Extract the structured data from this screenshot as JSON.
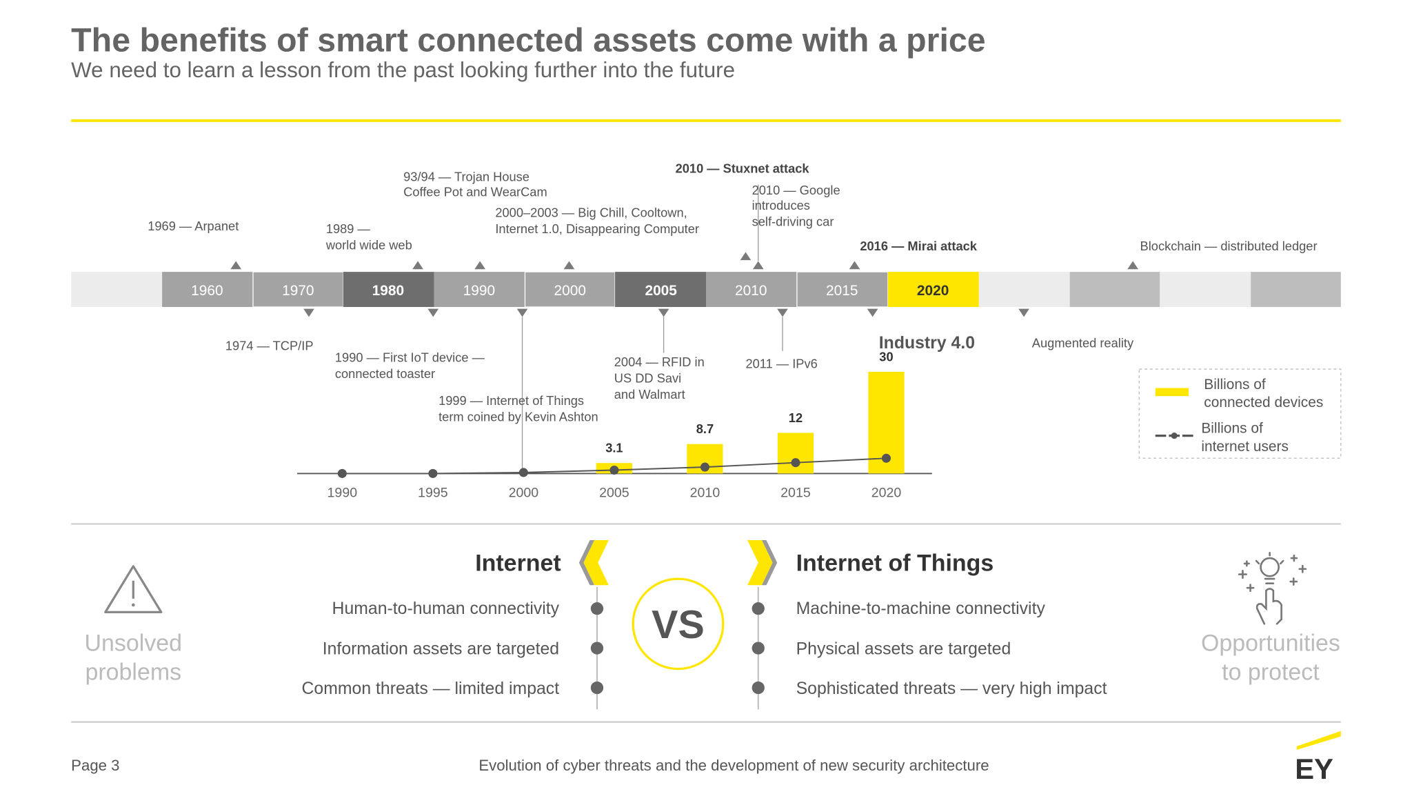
{
  "header": {
    "title": "The benefits of smart connected assets come with a price",
    "subtitle": "We need to learn a lesson from the past looking further into the future"
  },
  "timeline": {
    "decades": [
      "1960",
      "1970",
      "1980",
      "1990",
      "2000",
      "2005",
      "2010",
      "2015",
      "2020"
    ],
    "events_above": [
      {
        "lines": [
          "1969 — Arpanet"
        ]
      },
      {
        "lines": [
          "1989 —",
          "world wide web"
        ]
      },
      {
        "lines": [
          "93/94 — Trojan House",
          "Coffee Pot and WearCam"
        ]
      },
      {
        "lines": [
          "2000–2003 — Big Chill, Cooltown,",
          "Internet 1.0, Disappearing Computer"
        ]
      },
      {
        "lines": [
          "2010 — Stuxnet attack"
        ]
      },
      {
        "lines": [
          "2010 — Google",
          "introduces",
          "self-driving car"
        ]
      },
      {
        "lines": [
          "2016 — Mirai attack"
        ]
      },
      {
        "lines": [
          "Blockchain — distributed ledger"
        ]
      }
    ],
    "events_below": [
      {
        "lines": [
          "1974 — TCP/IP"
        ]
      },
      {
        "lines": [
          "1990 — First IoT device —",
          "connected toaster"
        ]
      },
      {
        "lines": [
          "1999 — Internet of Things",
          "term coined by Kevin Ashton"
        ]
      },
      {
        "lines": [
          "2004 — RFID in",
          "US DD Savi",
          "and Walmart"
        ]
      },
      {
        "lines": [
          "2011 — IPv6"
        ]
      },
      {
        "lines": [
          "Industry 4.0"
        ]
      },
      {
        "lines": [
          "Augmented reality"
        ]
      }
    ]
  },
  "chart_data": {
    "type": "bar",
    "categories": [
      "1990",
      "1995",
      "2000",
      "2005",
      "2010",
      "2015",
      "2020"
    ],
    "series": [
      {
        "name": [
          "Billions of",
          "connected devices"
        ],
        "type": "bar",
        "color": "#ffe600",
        "values": [
          null,
          null,
          null,
          3.1,
          8.7,
          12,
          30
        ]
      },
      {
        "name": [
          "Billions of",
          "internet users"
        ],
        "type": "line",
        "color": "#555555",
        "values": [
          0,
          0,
          0.3,
          1,
          1.9,
          3.2,
          4.5
        ]
      }
    ]
  },
  "comparison": {
    "left_label": {
      "lines": [
        "Unsolved",
        "problems"
      ]
    },
    "internet": {
      "title": "Internet",
      "items": [
        "Human-to-human connectivity",
        "Information assets are targeted",
        "Common threats — limited impact"
      ]
    },
    "vs": "VS",
    "iot": {
      "title": "Internet of Things",
      "items": [
        "Machine-to-machine connectivity",
        "Physical assets are targeted",
        "Sophisticated threats — very high impact"
      ]
    },
    "right_label": {
      "lines": [
        "Opportunities",
        "to protect"
      ]
    }
  },
  "footer": {
    "page": "Page 3",
    "caption": "Evolution of cyber threats and the development of new security architecture",
    "logo": "EY"
  }
}
